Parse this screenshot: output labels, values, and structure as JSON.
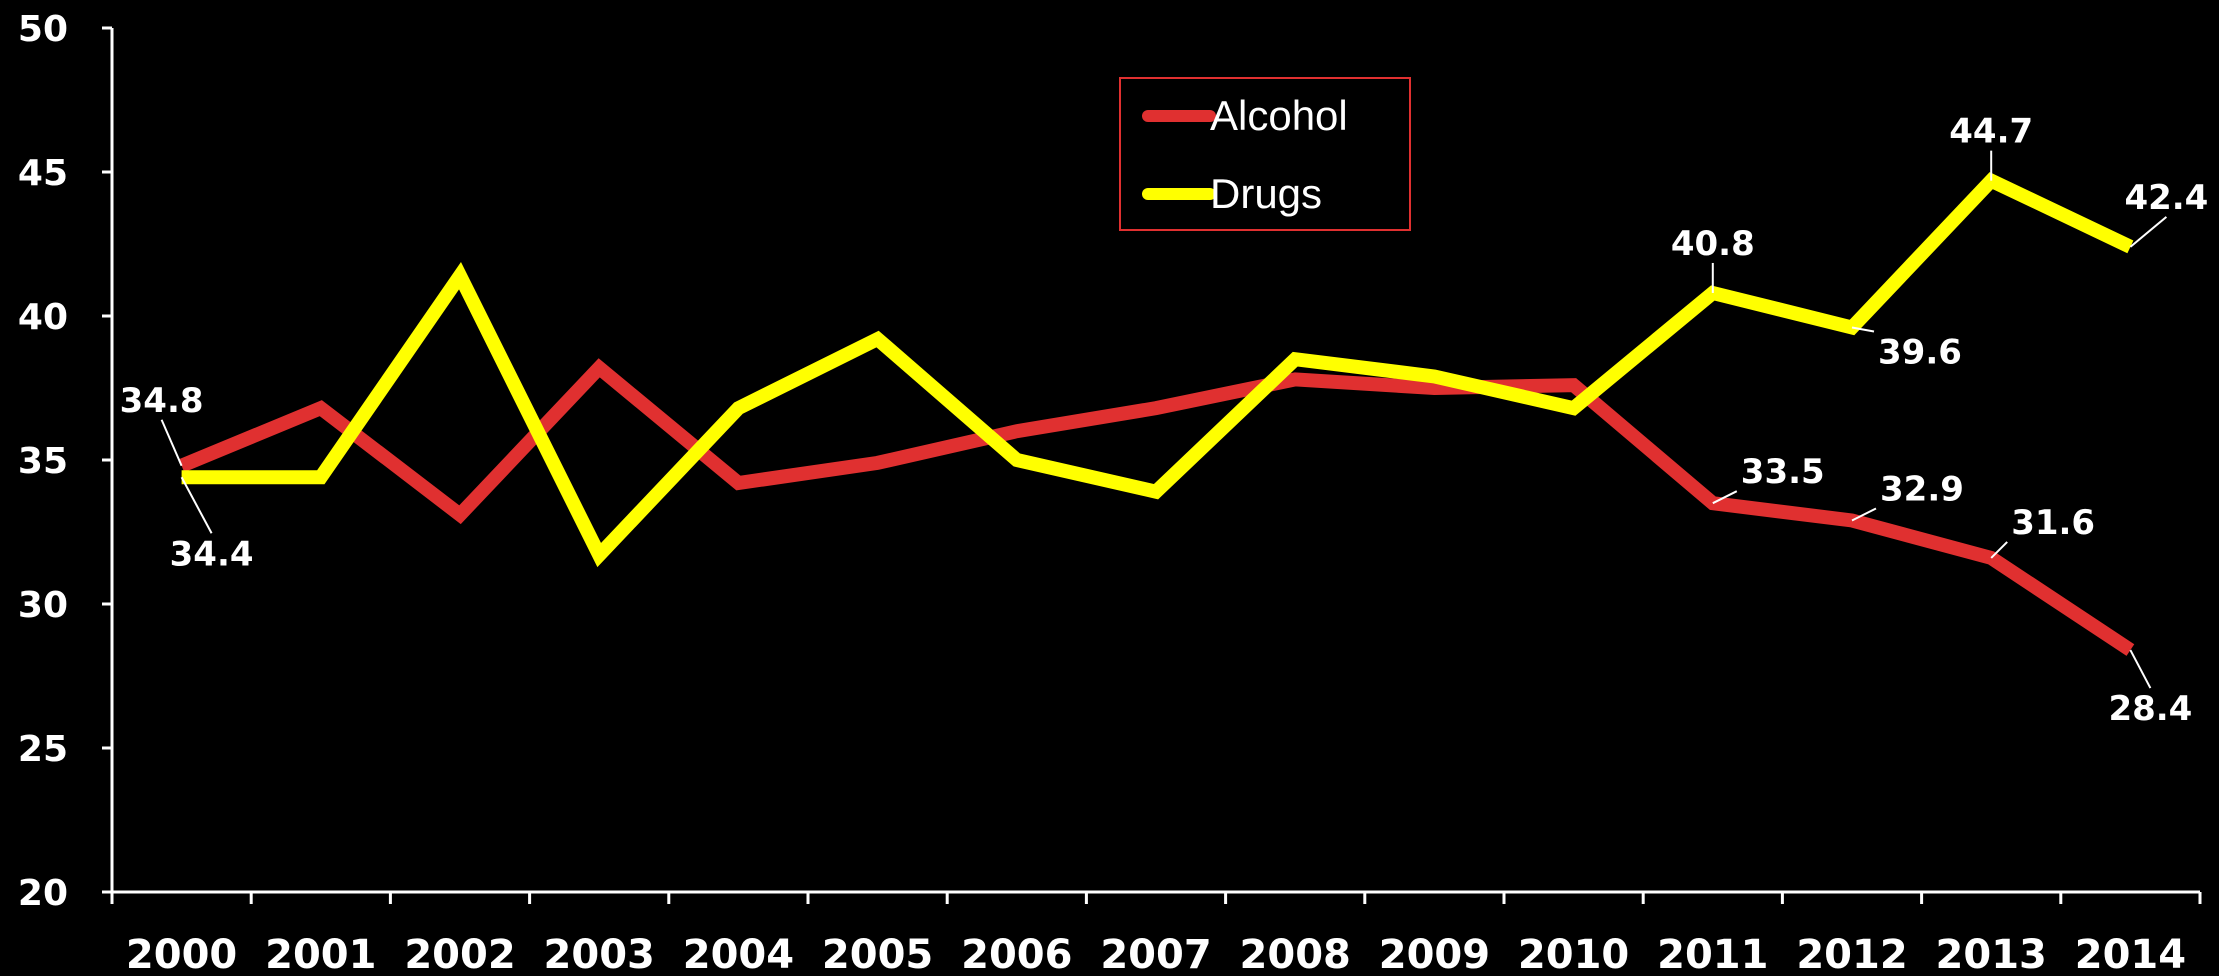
{
  "chart_data": {
    "type": "line",
    "categories": [
      "2000",
      "2001",
      "2002",
      "2003",
      "2004",
      "2005",
      "2006",
      "2007",
      "2008",
      "2009",
      "2010",
      "2011",
      "2012",
      "2013",
      "2014"
    ],
    "ylim": [
      20,
      50
    ],
    "yticks": [
      "20",
      "25",
      "30",
      "35",
      "40",
      "45",
      "50"
    ],
    "grid": false,
    "legend_position": "top-center",
    "series": [
      {
        "name": "Alcohol",
        "color": "#e03030",
        "values": [
          34.8,
          36.8,
          33.1,
          38.2,
          34.2,
          34.9,
          36.0,
          36.8,
          37.8,
          37.5,
          37.6,
          33.5,
          32.9,
          31.6,
          28.4
        ],
        "labels": {
          "0": "34.8",
          "11": "33.5",
          "12": "32.9",
          "13": "31.6",
          "14": "28.4"
        }
      },
      {
        "name": "Drugs",
        "color": "#ffff00",
        "values": [
          34.4,
          34.4,
          41.4,
          31.7,
          36.8,
          39.2,
          35.0,
          33.9,
          38.5,
          37.9,
          36.8,
          40.8,
          39.6,
          44.7,
          42.4
        ],
        "labels": {
          "0": "34.4",
          "11": "40.8",
          "12": "39.6",
          "13": "44.7",
          "14": "42.4"
        }
      }
    ]
  }
}
